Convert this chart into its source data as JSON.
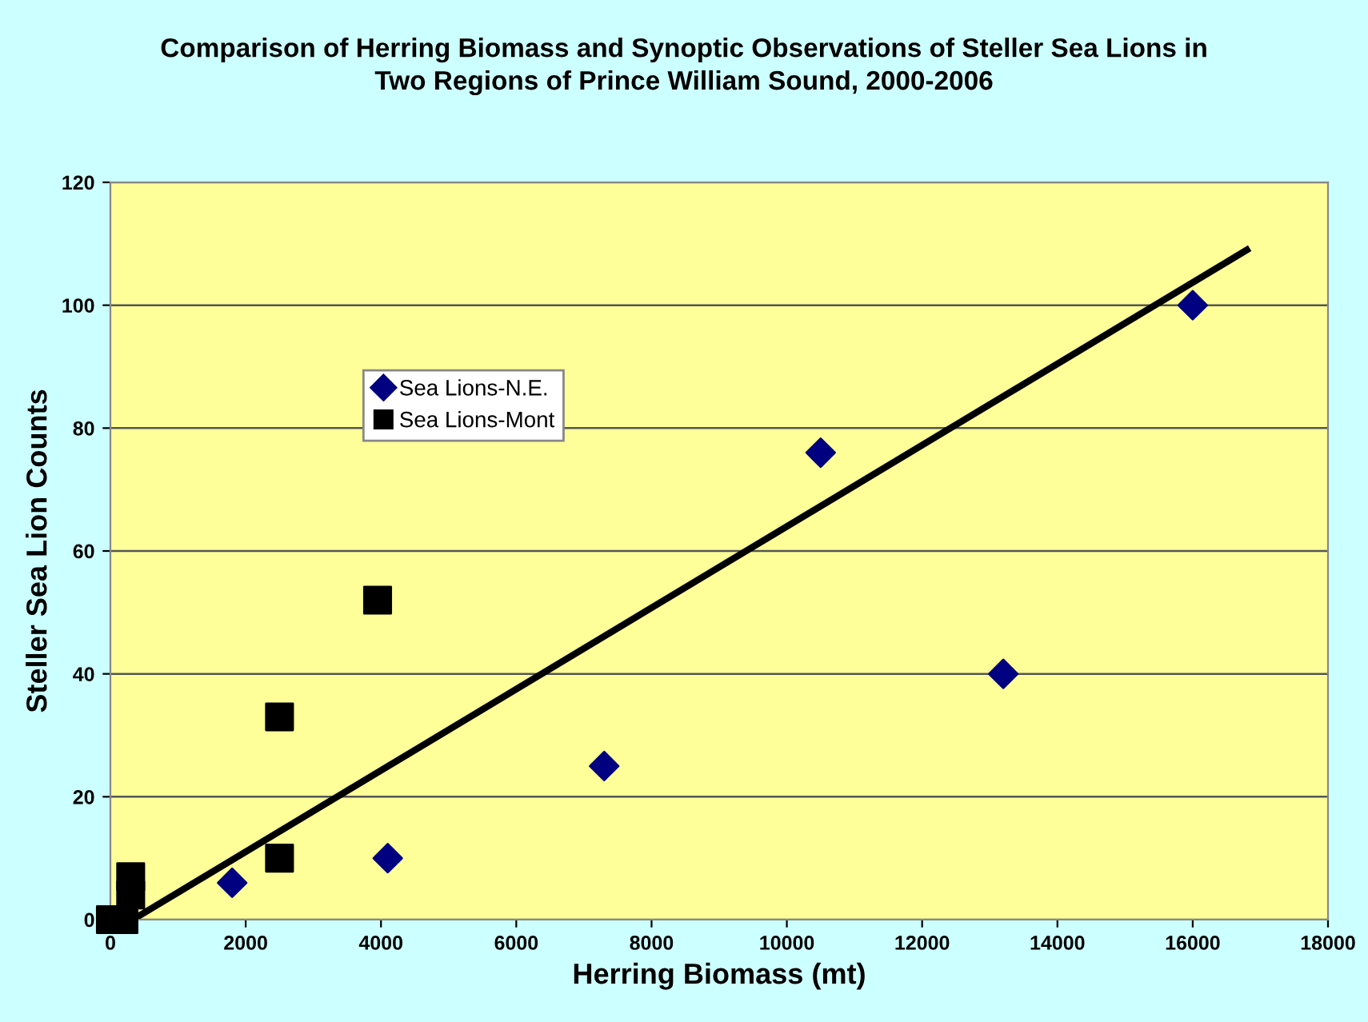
{
  "chart_data": {
    "type": "scatter",
    "title": "Comparison of Herring Biomass and Synoptic Observations of Steller Sea Lions in\nTwo Regions of Prince William Sound, 2000-2006",
    "xlabel": "Herring Biomass (mt)",
    "ylabel": "Steller Sea Lion Counts",
    "series": [
      {
        "name": "Sea Lions-N.E.",
        "color": "#000080",
        "marker": "diamond",
        "x": [
          1800,
          4100,
          7300,
          10500,
          13200,
          16000
        ],
        "values": [
          6,
          10,
          25,
          76,
          40,
          100
        ]
      },
      {
        "name": "Sea Lions-Mont",
        "color": "#000000",
        "marker": "square",
        "x": [
          0,
          200,
          300,
          300,
          2500,
          2500,
          3950
        ],
        "values": [
          0,
          0,
          4,
          7,
          10,
          33,
          52
        ]
      },
      {
        "type": "line",
        "color": "#000000",
        "marker": "none",
        "x": [
          330,
          16800
        ],
        "values": [
          0,
          109
        ]
      }
    ],
    "xlim": [
      0,
      18000
    ],
    "xticks": [
      0,
      2000,
      4000,
      6000,
      8000,
      10000,
      12000,
      14000,
      16000,
      18000
    ],
    "ylim": [
      0,
      120
    ],
    "yticks": [
      0,
      20,
      40,
      60,
      80,
      100,
      120
    ],
    "grid": "y",
    "legend": "upper center"
  }
}
